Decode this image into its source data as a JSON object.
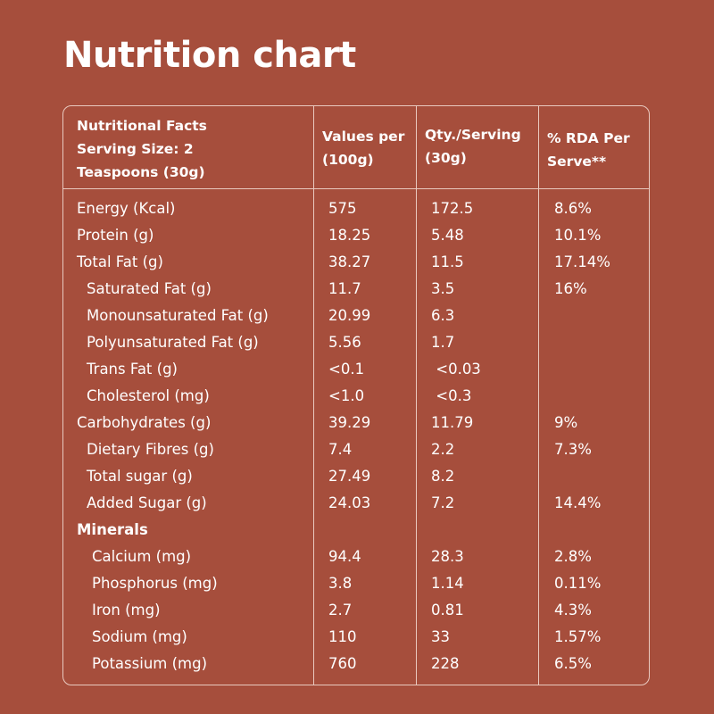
{
  "title": "Nutrition chart",
  "header": {
    "col0": [
      "Nutritional Facts",
      "Serving Size: 2",
      "Teaspoons (30g)"
    ],
    "col1": [
      "Values per",
      "(100g)"
    ],
    "col2": [
      "Qty./Serving",
      "(30g)"
    ],
    "col3": [
      "% RDA Per",
      "Serve**"
    ]
  },
  "rows": [
    {
      "label": "Energy (Kcal)",
      "per100": "575",
      "serving": "172.5",
      "rda": "8.6%",
      "level": 0
    },
    {
      "label": "Protein (g)",
      "per100": "18.25",
      "serving": "5.48",
      "rda": "10.1%",
      "level": 0
    },
    {
      "label": "Total Fat (g)",
      "per100": "38.27",
      "serving": "11.5",
      "rda": "17.14%",
      "level": 0
    },
    {
      "label": "Saturated Fat (g)",
      "per100": "11.7",
      "serving": "3.5",
      "rda": "16%",
      "level": 1
    },
    {
      "label": "Monounsaturated Fat (g)",
      "per100": "20.99",
      "serving": "6.3",
      "rda": "",
      "level": 1
    },
    {
      "label": "Polyunsaturated Fat (g)",
      "per100": "5.56",
      "serving": "1.7",
      "rda": "",
      "level": 1
    },
    {
      "label": "Trans Fat (g)",
      "per100": "<0.1",
      "serving": " <0.03",
      "rda": "",
      "level": 1
    },
    {
      "label": "Cholesterol (mg)",
      "per100": "<1.0",
      "serving": " <0.3",
      "rda": "",
      "level": 1
    },
    {
      "label": "Carbohydrates (g)",
      "per100": "39.29",
      "serving": "11.79",
      "rda": "9%",
      "level": 0
    },
    {
      "label": "Dietary Fibres (g)",
      "per100": "7.4",
      "serving": "2.2",
      "rda": "7.3%",
      "level": 1
    },
    {
      "label": "Total sugar (g)",
      "per100": "27.49",
      "serving": "8.2",
      "rda": "",
      "level": 1
    },
    {
      "label": "Added Sugar (g)",
      "per100": "24.03",
      "serving": "7.2",
      "rda": "14.4%",
      "level": 1
    },
    {
      "label": "Minerals",
      "per100": "",
      "serving": "",
      "rda": "",
      "level": 0,
      "bold": true
    },
    {
      "label": "Calcium (mg)",
      "per100": "94.4",
      "serving": "28.3",
      "rda": "2.8%",
      "level": 2
    },
    {
      "label": "Phosphorus (mg)",
      "per100": "3.8",
      "serving": "1.14",
      "rda": "0.11%",
      "level": 2
    },
    {
      "label": "Iron (mg)",
      "per100": "2.7",
      "serving": "0.81",
      "rda": "4.3%",
      "level": 2
    },
    {
      "label": "Sodium (mg)",
      "per100": "110",
      "serving": "33",
      "rda": "1.57%",
      "level": 2
    },
    {
      "label": "Potassium (mg)",
      "per100": "760",
      "serving": "228",
      "rda": "6.5%",
      "level": 2
    }
  ],
  "colors": {
    "background": "#a64e3c",
    "text": "#ffffff",
    "rule": "#e9c9bf"
  }
}
